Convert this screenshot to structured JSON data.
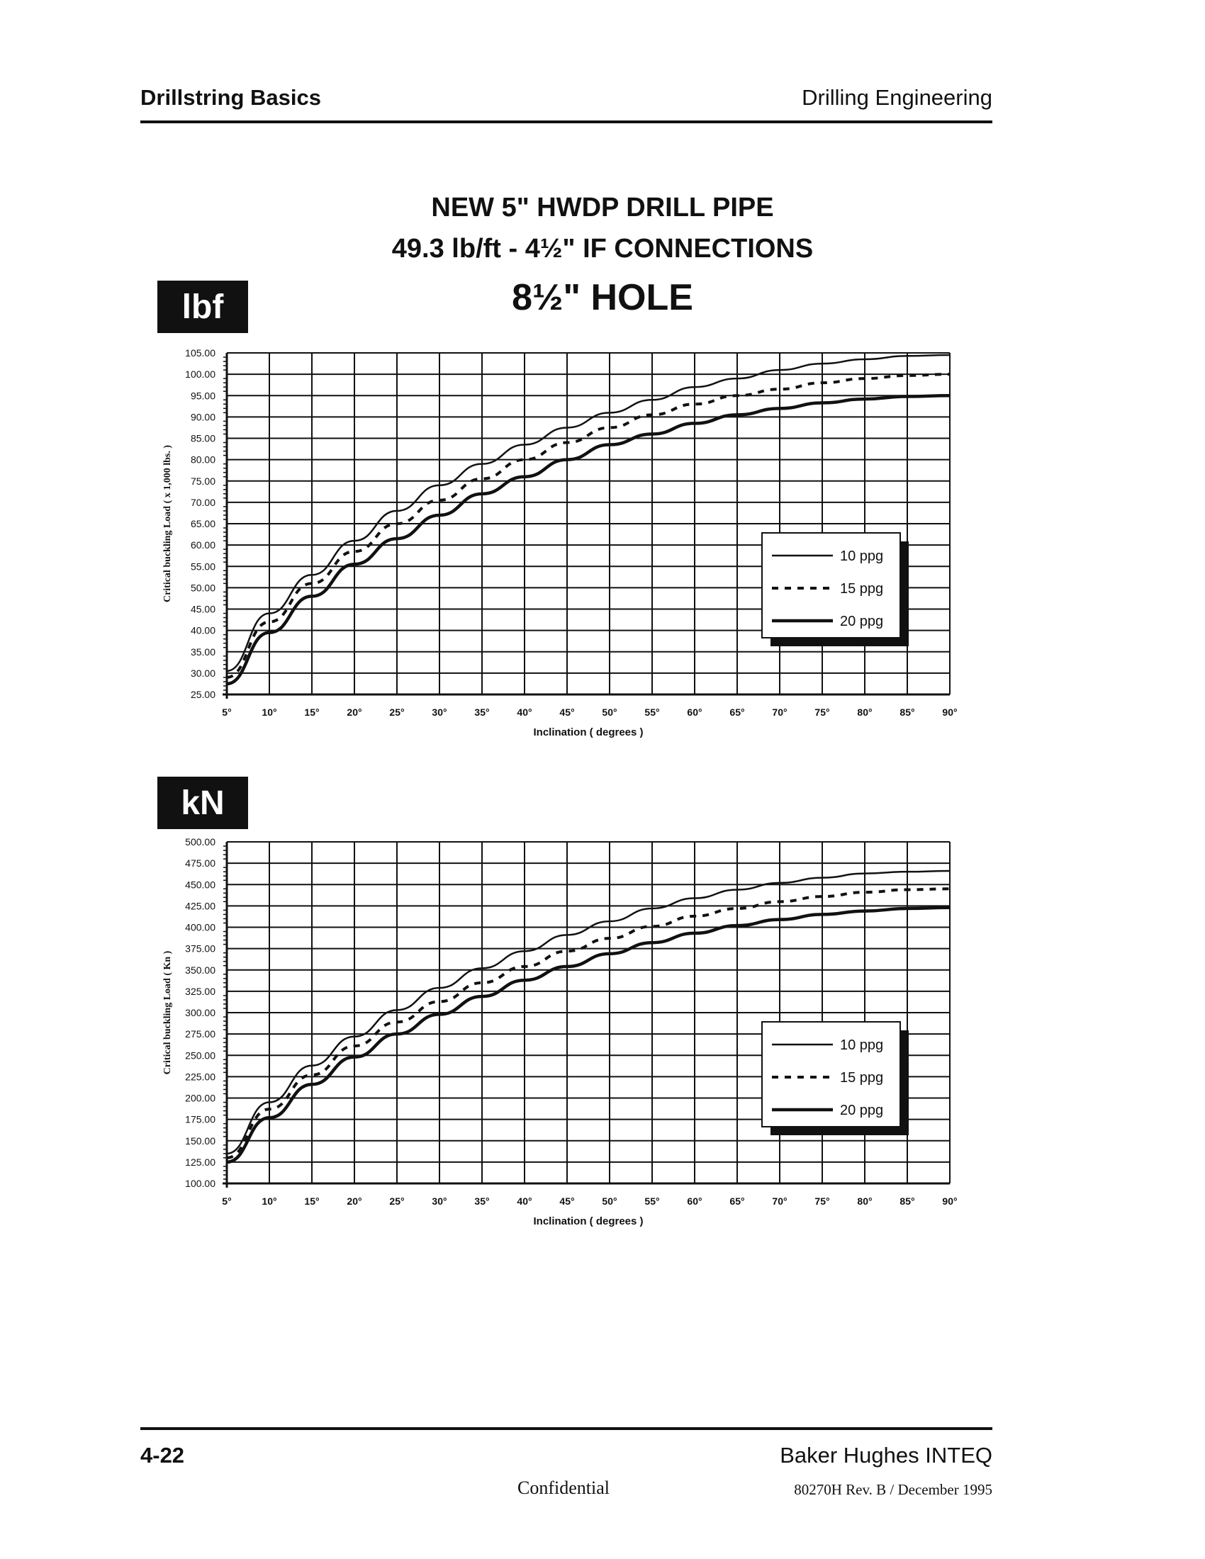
{
  "header": {
    "left": "Drillstring Basics",
    "right": "Drilling Engineering"
  },
  "title": {
    "line1": "NEW 5\" HWDP  DRILL PIPE",
    "line2": "49.3 lb/ft  -   4½\" IF CONNECTIONS",
    "line3": "8½\" HOLE"
  },
  "footer": {
    "page": "4-22",
    "company": "Baker Hughes INTEQ",
    "confidential": "Confidential",
    "revision": "80270H Rev. B / December 1995"
  },
  "colors": {
    "ink": "#111111",
    "paper": "#ffffff"
  },
  "chart_data": [
    {
      "type": "line",
      "unit_box": "lbf",
      "title": "",
      "xlabel": "Inclination  ( degrees )",
      "ylabel": "Critical buckling Load  ( x 1,000 lbs. )",
      "x_ticks": [
        "5°",
        "10°",
        "15°",
        "20°",
        "25°",
        "30°",
        "35°",
        "40°",
        "45°",
        "50°",
        "55°",
        "60°",
        "65°",
        "70°",
        "75°",
        "80°",
        "85°",
        "90°"
      ],
      "y_ticks": [
        "105.00",
        "100.00",
        "95.00",
        "90.00",
        "85.00",
        "80.00",
        "75.00",
        "70.00",
        "65.00",
        "60.00",
        "55.00",
        "50.00",
        "45.00",
        "40.00",
        "35.00",
        "30.00",
        "25.00"
      ],
      "xlim": [
        5,
        90
      ],
      "ylim": [
        25,
        105
      ],
      "grid": true,
      "legend_position": "right",
      "x": [
        5,
        10,
        15,
        20,
        25,
        30,
        35,
        40,
        45,
        50,
        55,
        60,
        65,
        70,
        75,
        80,
        85,
        90
      ],
      "series": [
        {
          "name": "10 ppg",
          "style": "solid",
          "values": [
            30.5,
            44,
            53,
            61,
            68,
            74,
            79,
            83.5,
            87.5,
            91,
            94,
            97,
            99,
            101,
            102.5,
            103.5,
            104.3,
            104.5
          ]
        },
        {
          "name": "15 ppg",
          "style": "dashed",
          "values": [
            29,
            42,
            51,
            58.5,
            65,
            70.5,
            75.5,
            80,
            84,
            87.5,
            90.5,
            93,
            95,
            96.5,
            98,
            99,
            99.7,
            100
          ]
        },
        {
          "name": "20 ppg",
          "style": "bold",
          "values": [
            27.5,
            39.5,
            48,
            55.5,
            61.5,
            67,
            72,
            76,
            80,
            83.5,
            86,
            88.5,
            90.5,
            92,
            93.3,
            94.2,
            94.8,
            95
          ]
        }
      ]
    },
    {
      "type": "line",
      "unit_box": "kN",
      "title": "",
      "xlabel": "Inclination  ( degrees )",
      "ylabel": "Critical buckling Load  ( Kn )",
      "x_ticks": [
        "5°",
        "10°",
        "15°",
        "20°",
        "25°",
        "30°",
        "35°",
        "40°",
        "45°",
        "50°",
        "55°",
        "60°",
        "65°",
        "70°",
        "75°",
        "80°",
        "85°",
        "90°"
      ],
      "y_ticks": [
        "500.00",
        "475.00",
        "450.00",
        "425.00",
        "400.00",
        "375.00",
        "350.00",
        "325.00",
        "300.00",
        "275.00",
        "250.00",
        "225.00",
        "200.00",
        "175.00",
        "150.00",
        "125.00",
        "100.00"
      ],
      "xlim": [
        5,
        90
      ],
      "ylim": [
        100,
        500
      ],
      "grid": true,
      "legend_position": "right",
      "x": [
        5,
        10,
        15,
        20,
        25,
        30,
        35,
        40,
        45,
        50,
        55,
        60,
        65,
        70,
        75,
        80,
        85,
        90
      ],
      "series": [
        {
          "name": "10 ppg",
          "style": "solid",
          "values": [
            135,
            195,
            238,
            272,
            303,
            329,
            352,
            372,
            391,
            407,
            422,
            434,
            444,
            452,
            458,
            463,
            465,
            466
          ]
        },
        {
          "name": "15 ppg",
          "style": "dashed",
          "values": [
            130,
            187,
            227,
            261,
            289,
            313,
            335,
            354,
            372,
            387,
            401,
            413,
            422,
            430,
            436,
            441,
            444,
            445
          ]
        },
        {
          "name": "20 ppg",
          "style": "bold",
          "values": [
            125,
            177,
            216,
            248,
            275,
            298,
            319,
            338,
            354,
            369,
            382,
            393,
            402,
            409,
            415,
            419,
            422,
            423
          ]
        }
      ]
    }
  ]
}
